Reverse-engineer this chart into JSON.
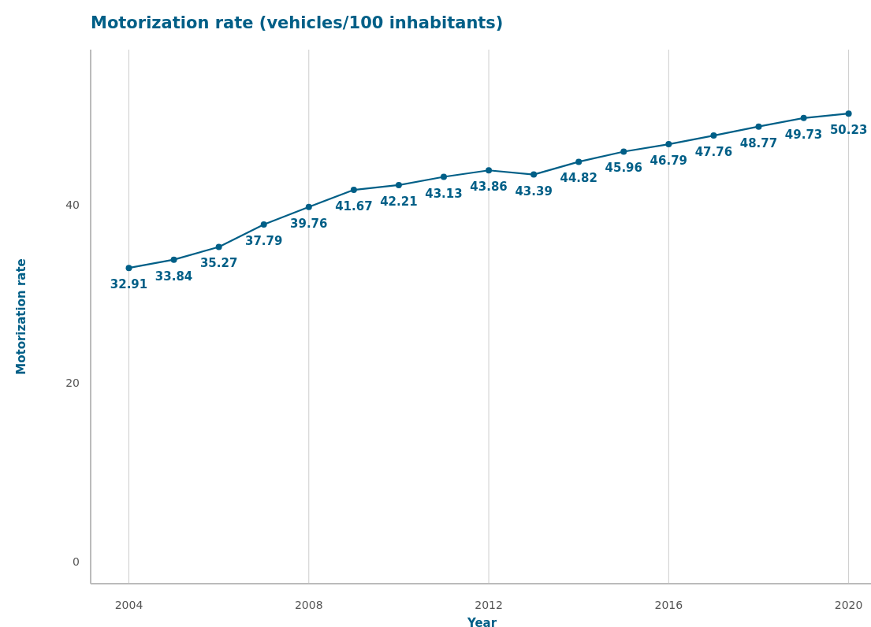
{
  "chart_data": {
    "type": "line",
    "title": "Motorization rate (vehicles/100 inhabitants)",
    "xlabel": "Year",
    "ylabel": "Motorization rate",
    "x": [
      2004,
      2005,
      2006,
      2007,
      2008,
      2009,
      2010,
      2011,
      2012,
      2013,
      2014,
      2015,
      2016,
      2017,
      2018,
      2019,
      2020
    ],
    "series": [
      {
        "color": "#005f87",
        "values": [
          32.91,
          33.84,
          35.27,
          37.79,
          39.76,
          41.67,
          42.21,
          43.13,
          43.86,
          43.39,
          44.82,
          45.96,
          46.79,
          47.76,
          48.77,
          49.73,
          50.23
        ]
      }
    ],
    "xlim": [
      2003.15,
      2020.55
    ],
    "xticks": [
      2004,
      2008,
      2012,
      2016,
      2020
    ],
    "ylim": [
      -2.5,
      57.4
    ],
    "yticks": [
      0,
      20,
      40
    ],
    "grid": "x",
    "marker": "circle",
    "line_style": "solid",
    "data_labels": true
  }
}
